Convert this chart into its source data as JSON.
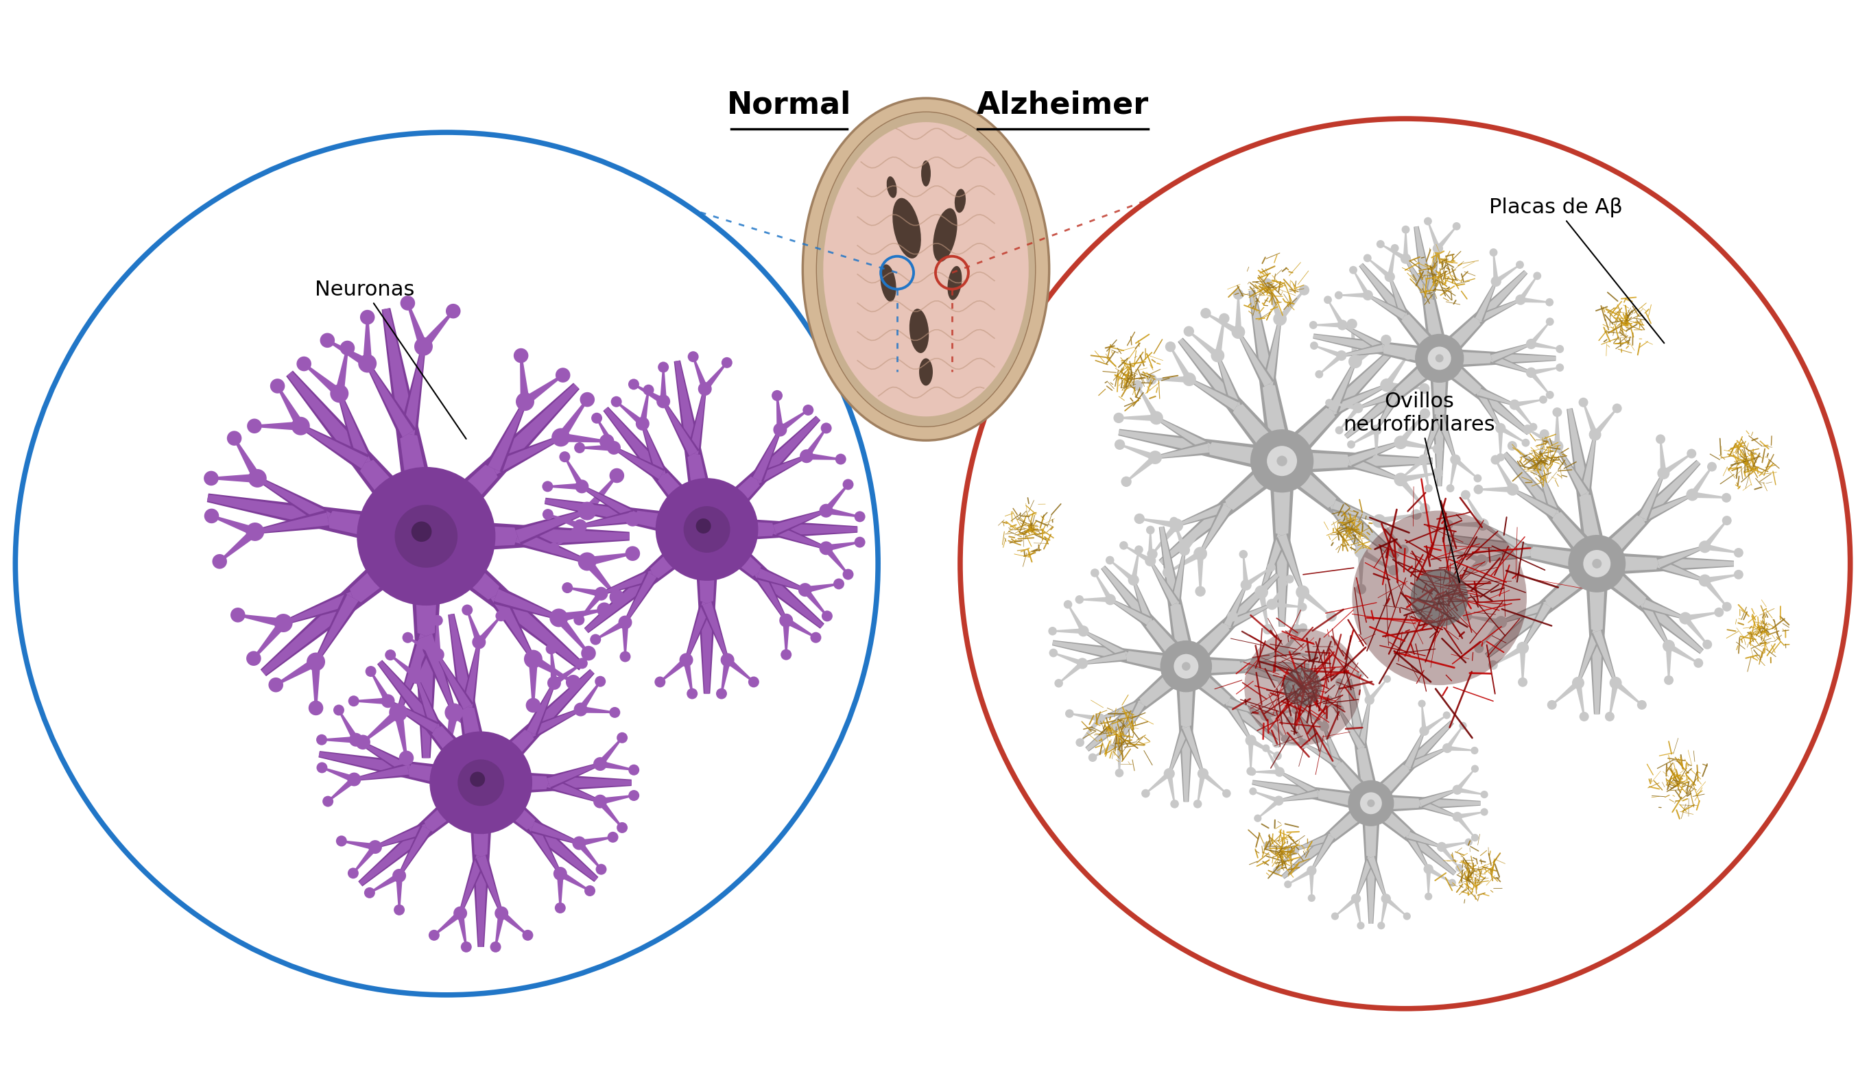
{
  "background_color": "#ffffff",
  "title_normal": "Normal",
  "title_alzheimer": "Alzheimer",
  "title_fontsize": 32,
  "neuron_color": "#9B59B6",
  "neuron_dark": "#7D3C98",
  "neuron_nucleus": "#5B2C6F",
  "gray_neuron_color": "#C8C8C8",
  "gray_neuron_dark": "#A0A0A0",
  "blue_circle_color": "#2176C7",
  "red_circle_color": "#C0392B",
  "plaque_color": "#B8860B",
  "tangle_color": "#8B0000",
  "label_neuronas": "Neuronas",
  "label_placas": "Placas de Aβ",
  "label_ovillos": "Ovillos\nneurofibrilares",
  "annotation_fontsize": 22,
  "fig_width": 27.25,
  "fig_height": 15.72
}
